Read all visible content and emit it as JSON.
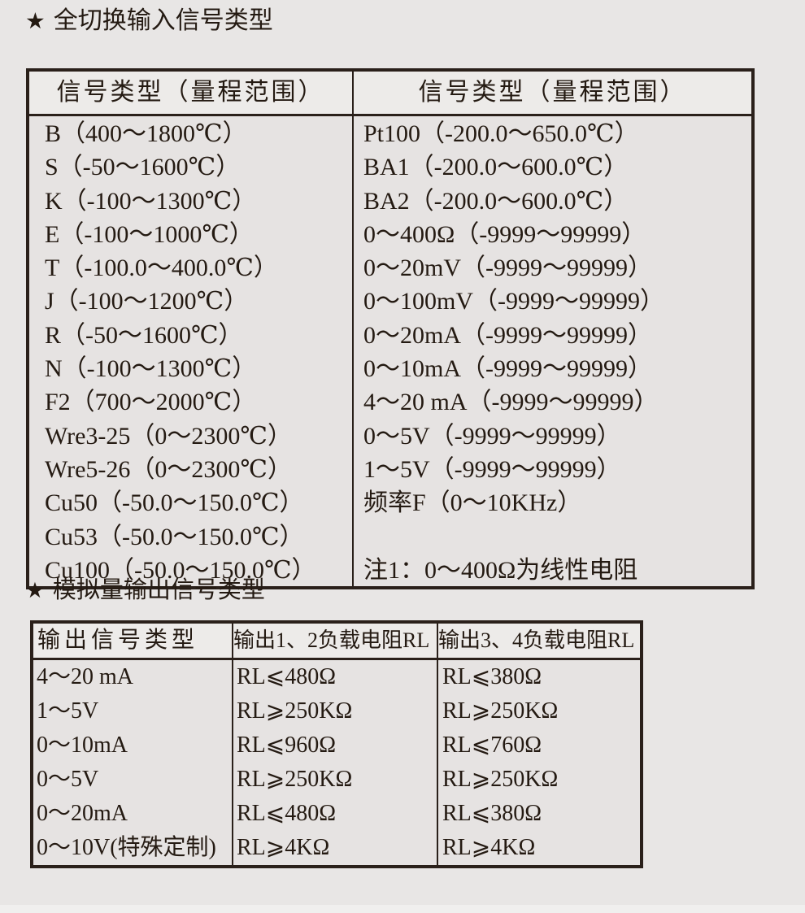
{
  "sections": [
    {
      "star": "★",
      "title": "全切换输入信号类型"
    },
    {
      "star": "★",
      "title": "模拟量输出信号类型"
    }
  ],
  "input_signal_table": {
    "headers": [
      "信号类型（量程范围）",
      "信号类型（量程范围）"
    ],
    "left_column": [
      "B（400～1800℃）",
      "S（-50～1600℃）",
      "K（-100～1300℃）",
      "E（-100～1000℃）",
      "T（-100.0～400.0℃）",
      "J（-100～1200℃）",
      "R（-50～1600℃）",
      "N（-100～1300℃）",
      "F2（700～2000℃）",
      "Wre3-25（0～2300℃）",
      "Wre5-26（0～2300℃）",
      "Cu50（-50.0～150.0℃）",
      "Cu53（-50.0～150.0℃）",
      "Cu100（-50.0～150.0℃）"
    ],
    "right_column": [
      "Pt100（-200.0～650.0℃）",
      "BA1（-200.0～600.0℃）",
      "BA2（-200.0～600.0℃）",
      "0～400Ω（-9999～99999）",
      "0～20mV（-9999～99999）",
      "0～100mV（-9999～99999）",
      "0～20mA（-9999～99999）",
      "0～10mA（-9999～99999）",
      "4～20 mA（-9999～99999）",
      "0～5V（-9999～99999）",
      "1～5V（-9999～99999）",
      "频率F（0～10KHz）",
      "",
      "注1：0～400Ω为线性电阻"
    ]
  },
  "output_signal_table": {
    "headers": [
      "输出信号类型",
      "输出1、2负载电阻RL",
      "输出3、4负载电阻RL"
    ],
    "rows": [
      {
        "type": "4～20 mA",
        "rl12": "RL⩽480Ω",
        "rl34": "RL⩽380Ω"
      },
      {
        "type": "1～5V",
        "rl12": "RL⩾250KΩ",
        "rl34": "RL⩾250KΩ"
      },
      {
        "type": "0～10mA",
        "rl12": "RL⩽960Ω",
        "rl34": "RL⩽760Ω"
      },
      {
        "type": "0～5V",
        "rl12": "RL⩾250KΩ",
        "rl34": "RL⩾250KΩ"
      },
      {
        "type": "0～20mA",
        "rl12": "RL⩽480Ω",
        "rl34": "RL⩽380Ω"
      },
      {
        "type": "0～10V(特殊定制)",
        "rl12": "RL⩾4KΩ",
        "rl34": "RL⩾4KΩ"
      }
    ]
  },
  "colors": {
    "page_bg": "#e8e6e5",
    "table_bg": "#e6e3e2",
    "header_bg": "#edebe9",
    "border": "#2a201a",
    "text": "#241a12"
  }
}
